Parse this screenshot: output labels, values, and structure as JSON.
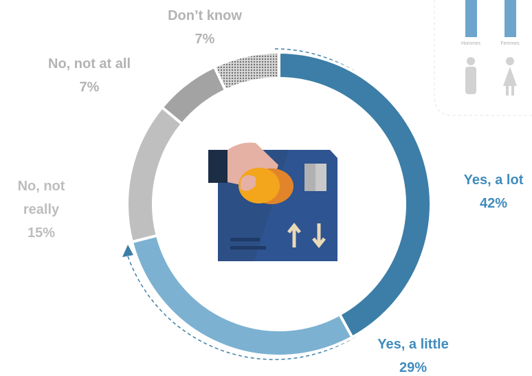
{
  "chart_data": {
    "type": "donut",
    "categories": [
      "Yes, a lot",
      "Yes, a little",
      "No, not really",
      "No, not at all",
      "Don’t know"
    ],
    "values": [
      42,
      29,
      15,
      7,
      7
    ],
    "value_labels": [
      "42%",
      "29%",
      "15%",
      "7%",
      "7%"
    ],
    "colors": [
      "#3c7ea7",
      "#7cb1d1",
      "#bfbfbf",
      "#a3a3a3",
      "#8e8e8e"
    ],
    "label_colors": [
      "#3f8bbd",
      "#3f8bbd",
      "#bdbdbd",
      "#b3b3b3",
      "#b3b3b3"
    ],
    "hatched": [
      false,
      false,
      false,
      false,
      true
    ]
  },
  "inset_labels": [
    "Hommes",
    "Femmes"
  ]
}
